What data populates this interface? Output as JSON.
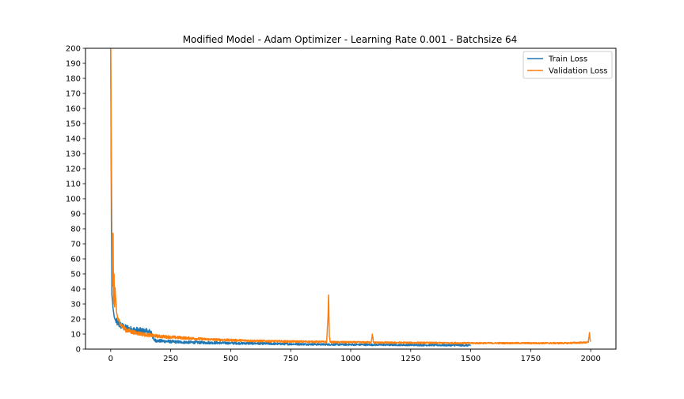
{
  "chart_data": {
    "type": "line",
    "title": "Modified Model - Adam Optimizer - Learning Rate 0.001 - Batchsize 64",
    "xlabel": "",
    "ylabel": "",
    "xlim": [
      -105,
      2105
    ],
    "ylim": [
      0,
      200
    ],
    "x_ticks": [
      0,
      250,
      500,
      750,
      1000,
      1250,
      1500,
      1750,
      2000
    ],
    "y_ticks": [
      0,
      10,
      20,
      30,
      40,
      50,
      60,
      70,
      80,
      90,
      100,
      110,
      120,
      130,
      140,
      150,
      160,
      170,
      180,
      190,
      200
    ],
    "grid": false,
    "legend_position": "top-right",
    "series": [
      {
        "name": "Train Loss",
        "color": "#1f77b4",
        "x": [
          0,
          3,
          5,
          8,
          10,
          15,
          20,
          30,
          40,
          50,
          60,
          70,
          80,
          100,
          120,
          150,
          170,
          180,
          200,
          250,
          300,
          400,
          500,
          600,
          700,
          800,
          900,
          1000,
          1100,
          1200,
          1300,
          1400,
          1500
        ],
        "y": [
          200,
          80,
          36,
          31,
          27,
          21,
          19,
          17,
          16,
          15,
          14,
          14,
          13,
          12.5,
          12,
          11.5,
          11,
          6,
          5.5,
          5,
          4.6,
          4.3,
          4.0,
          3.8,
          3.5,
          3.3,
          3.1,
          3.0,
          2.9,
          2.8,
          2.7,
          2.6,
          2.5
        ],
        "noise": 1.6
      },
      {
        "name": "Validation Loss",
        "color": "#ff7f0e",
        "x": [
          0,
          3,
          6,
          8,
          10,
          12,
          14,
          16,
          18,
          20,
          25,
          30,
          40,
          50,
          60,
          80,
          100,
          150,
          200,
          250,
          300,
          400,
          500,
          600,
          700,
          800,
          900,
          905,
          908,
          911,
          915,
          1000,
          1085,
          1090,
          1095,
          1100,
          1200,
          1300,
          1400,
          1500,
          1600,
          1700,
          1800,
          1900,
          1990,
          1995,
          1998,
          2000
        ],
        "y": [
          200,
          120,
          60,
          42,
          77,
          30,
          50,
          28,
          41,
          36,
          24,
          20,
          17,
          15,
          13,
          12,
          11,
          9.5,
          8.5,
          8,
          7.5,
          6.5,
          6,
          5.5,
          5.2,
          5,
          4.8,
          20,
          36,
          8,
          4.7,
          4.6,
          4.5,
          10,
          4.5,
          4.4,
          4.3,
          4.2,
          4.1,
          4.0,
          4.0,
          4.0,
          4.0,
          4.0,
          4.5,
          11,
          6,
          5
        ],
        "noise": 1.0
      }
    ]
  }
}
